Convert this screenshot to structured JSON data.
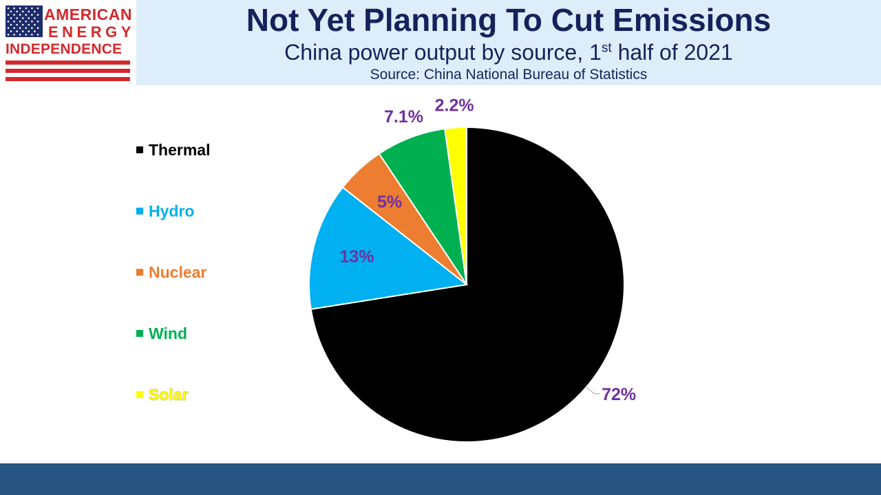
{
  "header": {
    "logo": {
      "line1": "AMERICAN",
      "line2": "ENERGY",
      "line3": "INDEPENDENCE",
      "brand_red": "#d6282c",
      "brand_blue": "#1d2d6b"
    },
    "title": "Not Yet Planning To Cut Emissions",
    "subtitle_pre": "China power output by source, 1",
    "subtitle_sup": "st",
    "subtitle_post": " half of 2021",
    "source": "Source: China National Bureau of Statistics"
  },
  "chart_data": {
    "type": "pie",
    "title": "",
    "categories": [
      "Thermal",
      "Hydro",
      "Nuclear",
      "Wind",
      "Solar"
    ],
    "values": [
      72,
      13,
      5,
      7.1,
      2.2
    ],
    "data_labels": [
      "72%",
      "13%",
      "5%",
      "7.1%",
      "2.2%"
    ],
    "colors": [
      "#000000",
      "#00b0f0",
      "#ed7d31",
      "#00b050",
      "#ffff00"
    ],
    "legend_position": "left",
    "start_angle": "12 o'clock",
    "direction": "clockwise"
  }
}
